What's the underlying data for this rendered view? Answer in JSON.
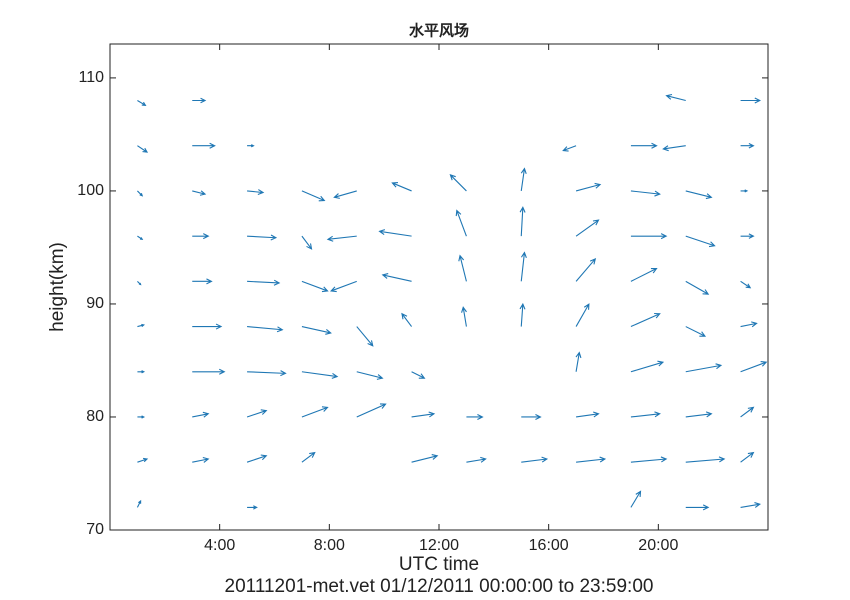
{
  "chart_data": {
    "type": "quiver",
    "title": "水平风场",
    "xlabel": "UTC time",
    "ylabel": "height(km)",
    "footnote": "20111201-met.vet 01/12/2011 00:00:00 to 23:59:00",
    "color": "#1f77b4",
    "xlim": [
      0,
      24
    ],
    "ylim": [
      70,
      113
    ],
    "xticks": [
      {
        "value": 4,
        "label": "4:00"
      },
      {
        "value": 8,
        "label": "8:00"
      },
      {
        "value": 12,
        "label": "12:00"
      },
      {
        "value": 16,
        "label": "16:00"
      },
      {
        "value": 20,
        "label": "20:00"
      }
    ],
    "yticks": [
      70,
      80,
      90,
      100,
      110
    ],
    "x": [
      1,
      3,
      21,
      23,
      1,
      3,
      5,
      17,
      19,
      21,
      23,
      1,
      3,
      5,
      7,
      9,
      11,
      13,
      15,
      17,
      19,
      21,
      23,
      1,
      3,
      5,
      7,
      9,
      11,
      13,
      15,
      17,
      19,
      21,
      23,
      1,
      3,
      5,
      7,
      9,
      11,
      13,
      15,
      17,
      19,
      21,
      23,
      1,
      3,
      5,
      7,
      9,
      11,
      13,
      15,
      17,
      19,
      21,
      23,
      1,
      3,
      5,
      7,
      9,
      11,
      17,
      19,
      21,
      23,
      1,
      3,
      5,
      7,
      9,
      11,
      13,
      15,
      17,
      19,
      21,
      23,
      1,
      3,
      5,
      7,
      11,
      13,
      15,
      17,
      19,
      21,
      23,
      1,
      5,
      19,
      21,
      23
    ],
    "y": [
      108,
      108,
      108,
      108,
      104,
      104,
      104,
      104,
      104,
      104,
      104,
      100,
      100,
      100,
      100,
      100,
      100,
      100,
      100,
      100,
      100,
      100,
      100,
      96,
      96,
      96,
      96,
      96,
      96,
      96,
      96,
      96,
      96,
      96,
      96,
      92,
      92,
      92,
      92,
      92,
      92,
      92,
      92,
      92,
      92,
      92,
      92,
      88,
      88,
      88,
      88,
      88,
      88,
      88,
      88,
      88,
      88,
      88,
      88,
      84,
      84,
      84,
      84,
      84,
      84,
      84,
      84,
      84,
      84,
      80,
      80,
      80,
      80,
      80,
      80,
      80,
      80,
      80,
      80,
      80,
      80,
      76,
      76,
      76,
      76,
      76,
      76,
      76,
      76,
      76,
      76,
      76,
      72,
      72,
      72,
      72,
      72
    ],
    "u": [
      5,
      8,
      -12,
      12,
      6,
      14,
      4,
      -8,
      16,
      -14,
      8,
      3,
      8,
      10,
      14,
      -14,
      -12,
      -10,
      2,
      15,
      18,
      16,
      4,
      3,
      10,
      18,
      6,
      -18,
      -20,
      -6,
      1,
      14,
      22,
      18,
      8,
      2,
      12,
      20,
      16,
      -16,
      -18,
      -4,
      2,
      12,
      16,
      14,
      6,
      4,
      18,
      22,
      18,
      10,
      -6,
      -2,
      1,
      8,
      18,
      12,
      10,
      4,
      20,
      24,
      22,
      16,
      8,
      2,
      20,
      22,
      16,
      4,
      10,
      12,
      16,
      18,
      14,
      10,
      12,
      14,
      18,
      16,
      8,
      6,
      10,
      12,
      8,
      16,
      12,
      16,
      18,
      22,
      24,
      8,
      2,
      6,
      6,
      14,
      12
    ],
    "v": [
      -3,
      0,
      3,
      0,
      -4,
      0,
      0,
      -3,
      0,
      -2,
      0,
      -3,
      -2,
      -1,
      -6,
      -4,
      5,
      10,
      14,
      4,
      -2,
      -4,
      0,
      -2,
      0,
      -1,
      -8,
      -2,
      3,
      16,
      18,
      10,
      0,
      -6,
      0,
      -2,
      0,
      -1,
      -6,
      -6,
      4,
      16,
      18,
      14,
      8,
      -8,
      -4,
      1,
      0,
      -2,
      -4,
      -12,
      8,
      12,
      14,
      14,
      8,
      -6,
      2,
      0,
      0,
      -1,
      -3,
      -4,
      -4,
      12,
      6,
      4,
      6,
      0,
      2,
      4,
      6,
      8,
      2,
      0,
      0,
      2,
      2,
      2,
      6,
      2,
      2,
      4,
      6,
      4,
      2,
      2,
      2,
      2,
      2,
      6,
      4,
      0,
      10,
      0,
      2
    ]
  }
}
